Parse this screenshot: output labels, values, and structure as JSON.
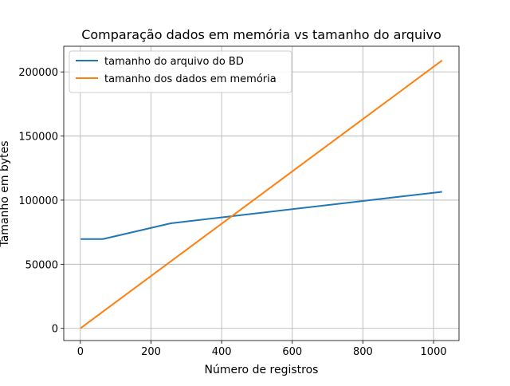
{
  "chart_data": {
    "type": "line",
    "title": "Comparação dados em memória vs tamanho do arquivo",
    "xlabel": "Número de registros",
    "ylabel": "Tamanho em bytes",
    "xlim": [
      -47,
      1072
    ],
    "ylim": [
      -9500,
      220000
    ],
    "xticks": [
      0,
      200,
      400,
      600,
      800,
      1000
    ],
    "yticks": [
      0,
      50000,
      100000,
      150000,
      200000
    ],
    "grid": true,
    "legend_position": "top-left",
    "series": [
      {
        "name": "tamanho do arquivo do BD",
        "color": "#1f77b4",
        "x": [
          1,
          64,
          256,
          1024
        ],
        "y": [
          69632,
          69632,
          81920,
          106496
        ]
      },
      {
        "name": "tamanho dos dados em memória",
        "color": "#ff7f0e",
        "x": [
          1,
          1024
        ],
        "y": [
          204,
          208896
        ]
      }
    ]
  }
}
